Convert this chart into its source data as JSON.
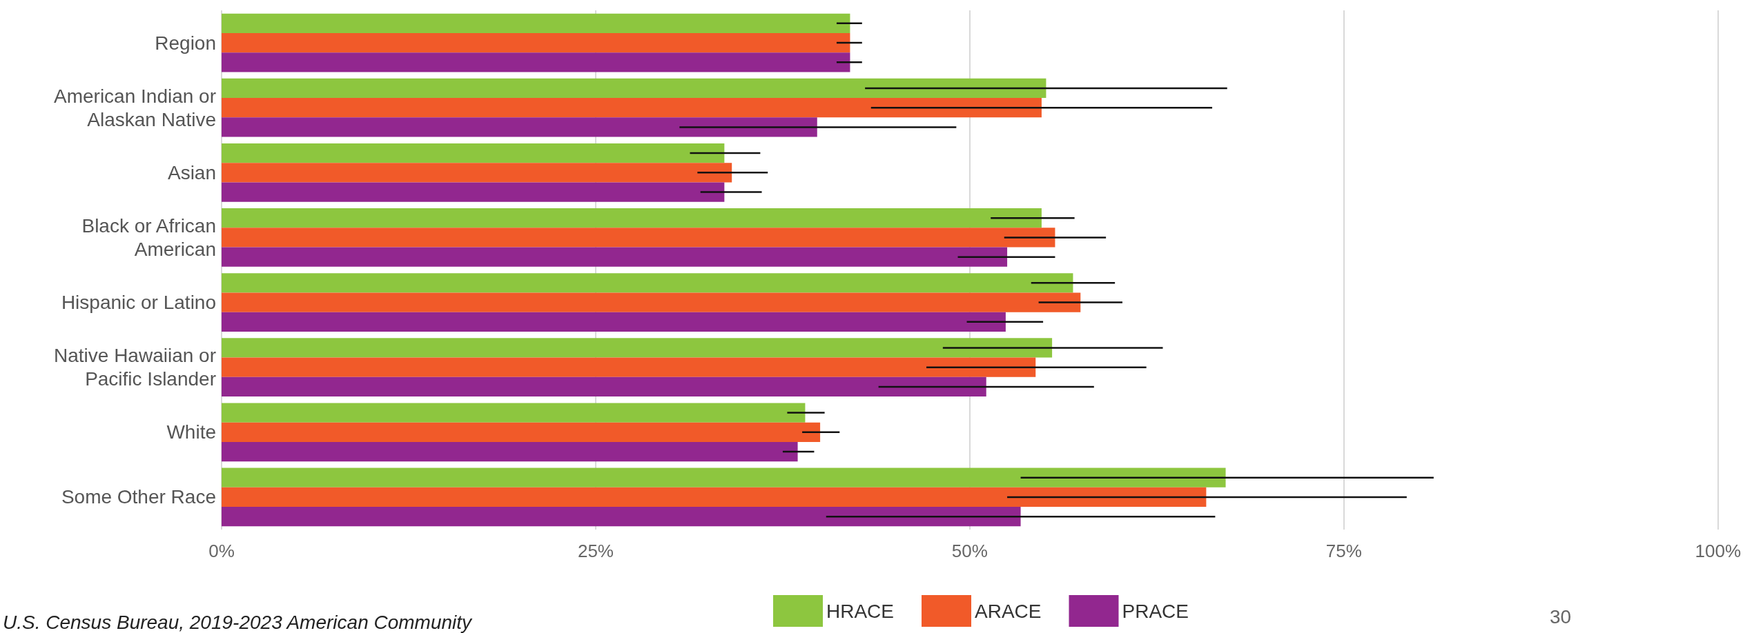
{
  "chart_data": {
    "type": "bar",
    "orientation": "horizontal",
    "categories": [
      "Region",
      "American Indian or\nAlaskan Native",
      "Asian",
      "Black or African\nAmerican",
      "Hispanic or Latino",
      "Native Hawaiian or\nPacific Islander",
      "White",
      "Some Other Race"
    ],
    "series": [
      {
        "name": "HRACE",
        "color": "#8dc63f",
        "values": [
          42,
          55.1,
          33.6,
          54.8,
          56.9,
          55.5,
          39.0,
          67.1
        ],
        "errors": [
          [
            41.1,
            42.8
          ],
          [
            43.0,
            67.2
          ],
          [
            31.3,
            36.0
          ],
          [
            51.4,
            57.0
          ],
          [
            54.1,
            59.7
          ],
          [
            48.2,
            62.9
          ],
          [
            37.8,
            40.3
          ],
          [
            53.4,
            81.0
          ]
        ]
      },
      {
        "name": "ARACE",
        "color": "#f15a29",
        "values": [
          42,
          54.8,
          34.1,
          55.7,
          57.4,
          54.4,
          40.0,
          65.8
        ],
        "errors": [
          [
            41.1,
            42.8
          ],
          [
            43.4,
            66.2
          ],
          [
            31.8,
            36.5
          ],
          [
            52.3,
            59.1
          ],
          [
            54.6,
            60.2
          ],
          [
            47.1,
            61.8
          ],
          [
            38.8,
            41.3
          ],
          [
            52.5,
            79.2
          ]
        ]
      },
      {
        "name": "PRACE",
        "color": "#92278f",
        "values": [
          42,
          39.8,
          33.6,
          52.5,
          52.4,
          51.1,
          38.5,
          53.4
        ],
        "errors": [
          [
            41.1,
            42.8
          ],
          [
            30.6,
            49.1
          ],
          [
            32.0,
            36.1
          ],
          [
            49.2,
            55.7
          ],
          [
            49.8,
            54.9
          ],
          [
            43.9,
            58.3
          ],
          [
            37.5,
            39.6
          ],
          [
            40.4,
            66.4
          ]
        ]
      }
    ],
    "xlim": [
      0,
      100
    ],
    "xticks": [
      {
        "value": 0,
        "label": "0%"
      },
      {
        "value": 25,
        "label": "25%"
      },
      {
        "value": 50,
        "label": "50%"
      },
      {
        "value": 75,
        "label": "75%"
      },
      {
        "value": 100,
        "label": "100%"
      }
    ],
    "grid": "x",
    "legend": "bottom",
    "annotations": [
      "U.S. Census Bureau, 2019-2023 American Community",
      "30"
    ]
  }
}
